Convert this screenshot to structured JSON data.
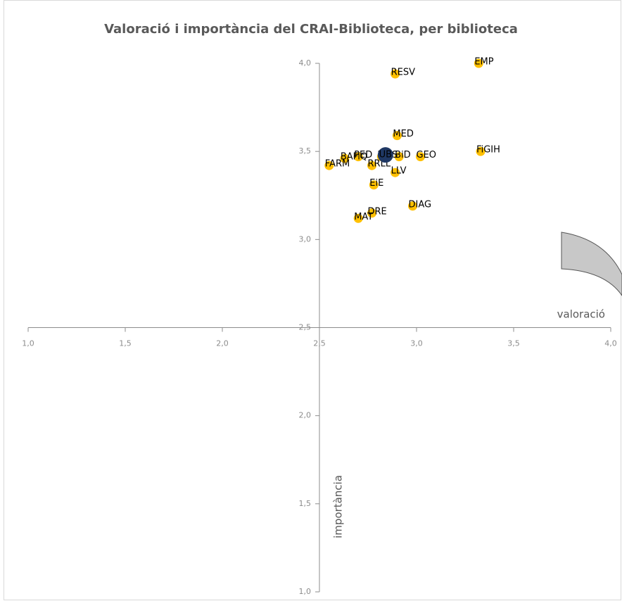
{
  "chart_data": {
    "type": "scatter",
    "title": "Valoració i importància del CRAI-Biblioteca, per biblioteca",
    "x_label": "valoració",
    "y_label": "importància",
    "xlim": [
      1,
      4
    ],
    "ylim": [
      1,
      4
    ],
    "xticks": [
      {
        "value": 1,
        "label": "1,0"
      },
      {
        "value": 1.5,
        "label": "1,5"
      },
      {
        "value": 2,
        "label": "2,0"
      },
      {
        "value": 2.5,
        "label": "2,5"
      },
      {
        "value": 3,
        "label": "3,0"
      },
      {
        "value": 3.5,
        "label": "3,5"
      },
      {
        "value": 4,
        "label": "4,0"
      }
    ],
    "yticks": [
      {
        "value": 1,
        "label": "1,0"
      },
      {
        "value": 1.5,
        "label": "1,5"
      },
      {
        "value": 2,
        "label": "2,0"
      },
      {
        "value": 2.5,
        "label": "2,5"
      },
      {
        "value": 3,
        "label": "3,0"
      },
      {
        "value": 3.5,
        "label": "3,5"
      },
      {
        "value": 4,
        "label": "4,0"
      }
    ],
    "axis_cross": [
      2.5,
      2.5
    ],
    "series": [
      {
        "color": "#FFC000",
        "labels": [
          "EMP",
          "RESV",
          "MED",
          "FiGIH",
          "GEO",
          "BiD",
          "MUS",
          "PED",
          "BAFiQ",
          "FARM",
          "RRLL",
          "LLV",
          "EiE",
          "DIAG",
          "DRE",
          "MAT"
        ],
        "x": [
          3.32,
          2.89,
          2.9,
          3.33,
          3.02,
          2.91,
          2.82,
          2.7,
          2.63,
          2.55,
          2.77,
          2.89,
          2.78,
          2.98,
          2.77,
          2.7
        ],
        "values": [
          4.0,
          3.94,
          3.59,
          3.5,
          3.47,
          3.47,
          3.47,
          3.47,
          3.46,
          3.42,
          3.42,
          3.38,
          3.31,
          3.19,
          3.15,
          3.12
        ]
      },
      {
        "color": "#1F3864",
        "labels": [
          "UB"
        ],
        "x": [
          2.84
        ],
        "values": [
          3.48
        ]
      }
    ]
  }
}
